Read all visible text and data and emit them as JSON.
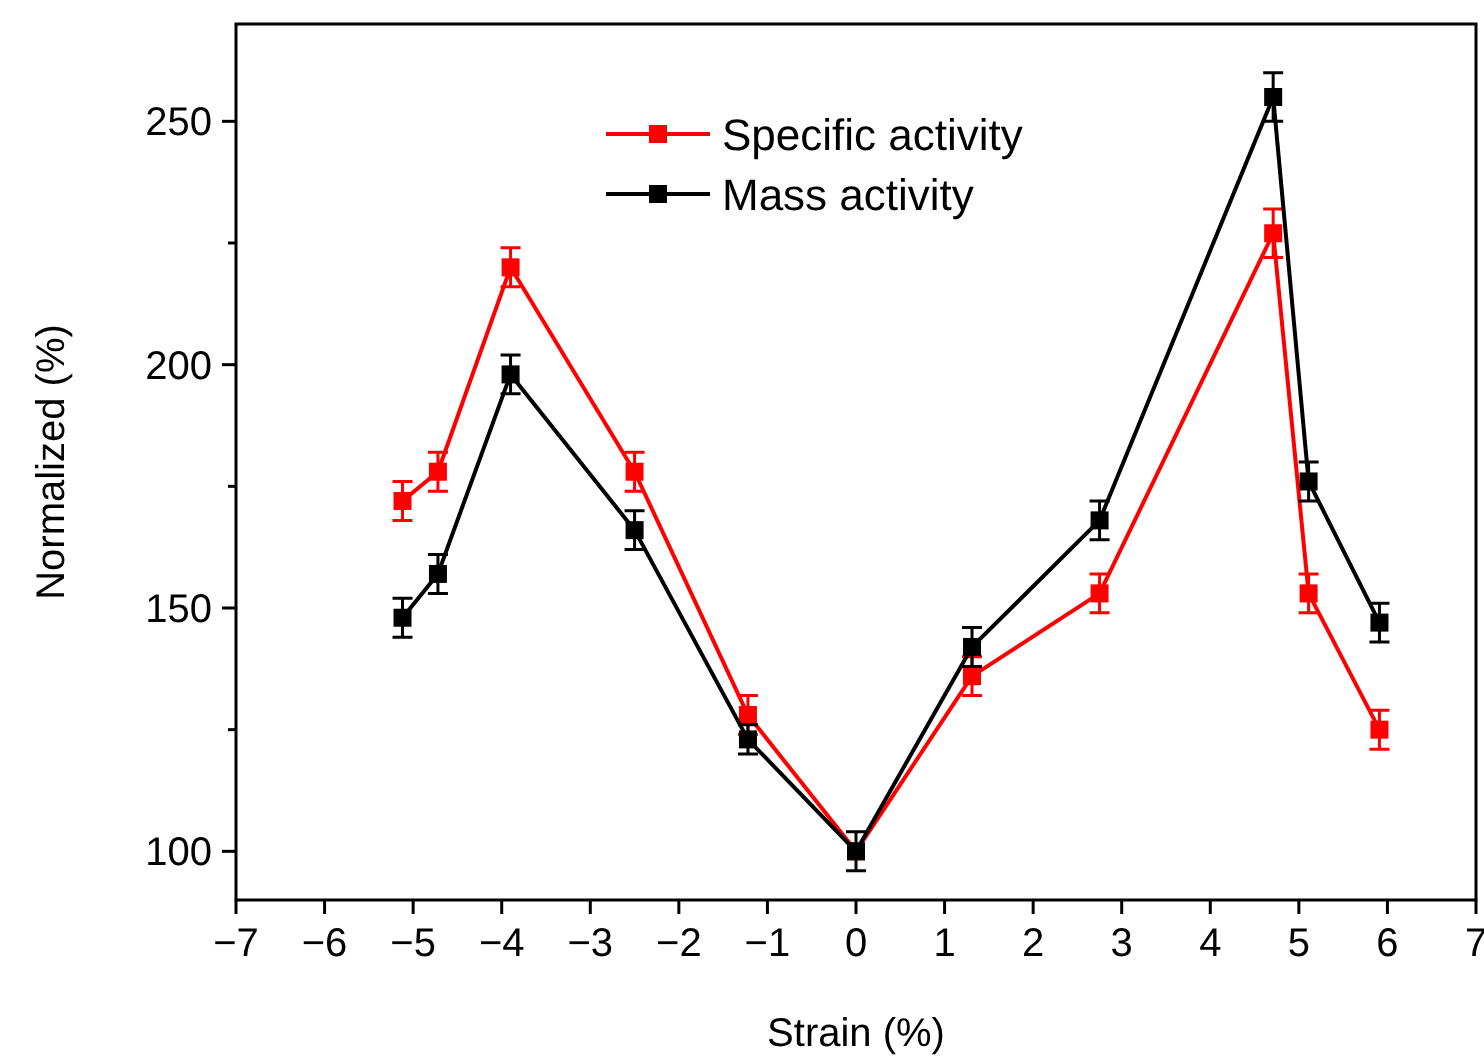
{
  "chart_data": {
    "type": "line",
    "xlabel": "Strain (%)",
    "ylabel": "Normalized (%)",
    "x": [
      -5.12,
      -4.72,
      -3.9,
      -2.5,
      -1.22,
      0,
      1.31,
      2.75,
      4.71,
      5.11,
      5.91
    ],
    "xlim": [
      -7,
      7
    ],
    "xticks": [
      -7,
      -6,
      -5,
      -4,
      -3,
      -2,
      -1,
      0,
      1,
      2,
      3,
      4,
      5,
      6,
      7
    ],
    "ylim": [
      90,
      270
    ],
    "yticks": [
      100,
      150,
      200,
      250
    ],
    "grid": false,
    "legend": "top",
    "marker": "square",
    "line_style": "solid",
    "series": [
      {
        "name": "Specific activity",
        "color": "#ff0000",
        "values": [
          172,
          178,
          220,
          178,
          128,
          100,
          136,
          153,
          227,
          153,
          125
        ],
        "errors": [
          4,
          4,
          4,
          4,
          4,
          null,
          4,
          4,
          5,
          4,
          4
        ]
      },
      {
        "name": "Mass activity",
        "color": "#000000",
        "values": [
          148,
          157,
          198,
          166,
          123,
          100,
          142,
          168,
          255,
          176,
          147
        ],
        "errors": [
          4,
          4,
          4,
          4,
          3,
          4,
          4,
          4,
          5,
          4,
          4
        ]
      }
    ]
  }
}
